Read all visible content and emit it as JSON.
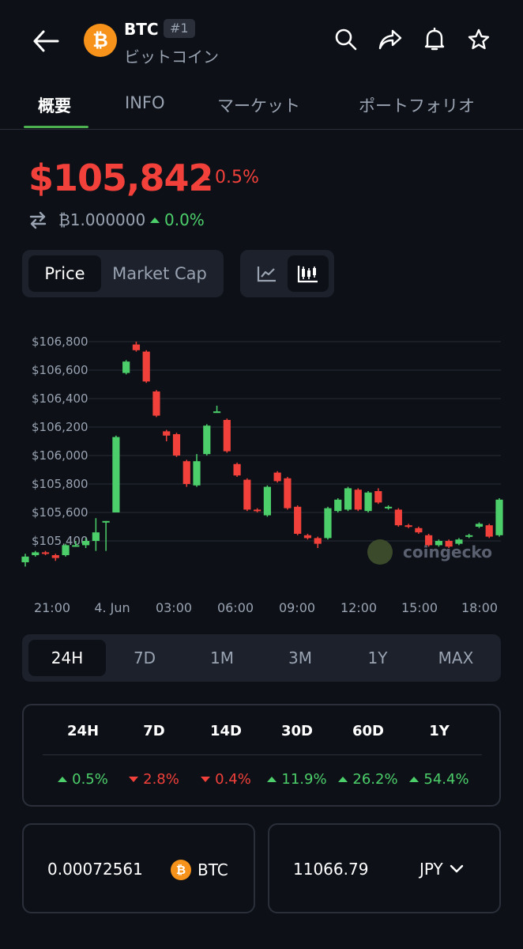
{
  "header": {
    "symbol": "BTC",
    "rank": "#1",
    "name": "ビットコイン",
    "logo_glyph": "₿",
    "icons": [
      "back-icon",
      "search-icon",
      "share-icon",
      "bell-icon",
      "star-icon"
    ]
  },
  "tabs": [
    {
      "label": "概要",
      "active": true
    },
    {
      "label": "INFO",
      "active": false
    },
    {
      "label": "マーケット",
      "active": false
    },
    {
      "label": "ポートフォリオ",
      "active": false
    }
  ],
  "price": {
    "value": "$105,842",
    "change": "0.5%",
    "btc_value": "₿1.000000",
    "btc_change": "0.0%"
  },
  "chart_toggle": {
    "price_label": "Price",
    "market_cap_label": "Market Cap",
    "selected": "Price",
    "chart_type_icons": [
      "line-chart-icon",
      "candlestick-icon"
    ],
    "selected_type": "candlestick"
  },
  "chart_data": {
    "type": "candlestick",
    "y_tick_labels": [
      "$106,800",
      "$106,600",
      "$106,400",
      "$106,200",
      "$106,000",
      "$105,800",
      "$105,600",
      "$105,400"
    ],
    "y_ticks": [
      106800,
      106600,
      106400,
      106200,
      106000,
      105800,
      105600,
      105400
    ],
    "x_tick_labels": [
      "21:00",
      "4. Jun",
      "03:00",
      "06:00",
      "09:00",
      "12:00",
      "15:00",
      "18:00"
    ],
    "ylim": [
      105200,
      106900
    ],
    "grid": true,
    "watermark": "coingecko",
    "candles": [
      {
        "o": 105250,
        "c": 105290,
        "h": 105310,
        "l": 105220
      },
      {
        "o": 105300,
        "c": 105320,
        "h": 105330,
        "l": 105290
      },
      {
        "o": 105320,
        "c": 105310,
        "h": 105330,
        "l": 105300
      },
      {
        "o": 105300,
        "c": 105280,
        "h": 105310,
        "l": 105260
      },
      {
        "o": 105300,
        "c": 105370,
        "h": 105380,
        "l": 105290
      },
      {
        "o": 105370,
        "c": 105370,
        "h": 105400,
        "l": 105360
      },
      {
        "o": 105370,
        "c": 105400,
        "h": 105420,
        "l": 105350
      },
      {
        "o": 105400,
        "c": 105460,
        "h": 105560,
        "l": 105330
      },
      {
        "o": 105540,
        "c": 105540,
        "h": 105540,
        "l": 105330
      },
      {
        "o": 105600,
        "c": 106130,
        "h": 106140,
        "l": 105600
      },
      {
        "o": 106580,
        "c": 106660,
        "h": 106670,
        "l": 106570
      },
      {
        "o": 106780,
        "c": 106740,
        "h": 106800,
        "l": 106730
      },
      {
        "o": 106730,
        "c": 106520,
        "h": 106740,
        "l": 106510
      },
      {
        "o": 106450,
        "c": 106280,
        "h": 106460,
        "l": 106270
      },
      {
        "o": 106170,
        "c": 106140,
        "h": 106180,
        "l": 106100
      },
      {
        "o": 106150,
        "c": 106000,
        "h": 106160,
        "l": 105990
      },
      {
        "o": 105960,
        "c": 105800,
        "h": 105970,
        "l": 105780
      },
      {
        "o": 105790,
        "c": 105960,
        "h": 106010,
        "l": 105780
      },
      {
        "o": 106010,
        "c": 106210,
        "h": 106220,
        "l": 106000
      },
      {
        "o": 106310,
        "c": 106310,
        "h": 106350,
        "l": 106300
      },
      {
        "o": 106250,
        "c": 106030,
        "h": 106260,
        "l": 106020
      },
      {
        "o": 105940,
        "c": 105860,
        "h": 105950,
        "l": 105850
      },
      {
        "o": 105830,
        "c": 105620,
        "h": 105840,
        "l": 105610
      },
      {
        "o": 105620,
        "c": 105610,
        "h": 105630,
        "l": 105600
      },
      {
        "o": 105580,
        "c": 105780,
        "h": 105790,
        "l": 105570
      },
      {
        "o": 105880,
        "c": 105820,
        "h": 105890,
        "l": 105810
      },
      {
        "o": 105840,
        "c": 105630,
        "h": 105850,
        "l": 105620
      },
      {
        "o": 105640,
        "c": 105450,
        "h": 105650,
        "l": 105440
      },
      {
        "o": 105440,
        "c": 105420,
        "h": 105450,
        "l": 105410
      },
      {
        "o": 105420,
        "c": 105380,
        "h": 105430,
        "l": 105350
      },
      {
        "o": 105420,
        "c": 105630,
        "h": 105640,
        "l": 105410
      },
      {
        "o": 105610,
        "c": 105690,
        "h": 105700,
        "l": 105600
      },
      {
        "o": 105620,
        "c": 105770,
        "h": 105780,
        "l": 105610
      },
      {
        "o": 105760,
        "c": 105620,
        "h": 105770,
        "l": 105610
      },
      {
        "o": 105610,
        "c": 105740,
        "h": 105750,
        "l": 105600
      },
      {
        "o": 105750,
        "c": 105670,
        "h": 105770,
        "l": 105660
      },
      {
        "o": 105640,
        "c": 105640,
        "h": 105650,
        "l": 105620
      },
      {
        "o": 105620,
        "c": 105510,
        "h": 105630,
        "l": 105500
      },
      {
        "o": 105510,
        "c": 105500,
        "h": 105520,
        "l": 105490
      },
      {
        "o": 105490,
        "c": 105460,
        "h": 105500,
        "l": 105450
      },
      {
        "o": 105440,
        "c": 105370,
        "h": 105450,
        "l": 105360
      },
      {
        "o": 105370,
        "c": 105400,
        "h": 105410,
        "l": 105360
      },
      {
        "o": 105400,
        "c": 105360,
        "h": 105410,
        "l": 105350
      },
      {
        "o": 105380,
        "c": 105410,
        "h": 105420,
        "l": 105370
      },
      {
        "o": 105430,
        "c": 105440,
        "h": 105450,
        "l": 105420
      },
      {
        "o": 105500,
        "c": 105520,
        "h": 105530,
        "l": 105490
      },
      {
        "o": 105510,
        "c": 105430,
        "h": 105520,
        "l": 105420
      },
      {
        "o": 105440,
        "c": 105690,
        "h": 105700,
        "l": 105430
      }
    ]
  },
  "ranges": [
    {
      "label": "24H",
      "active": true
    },
    {
      "label": "7D",
      "active": false
    },
    {
      "label": "1M",
      "active": false
    },
    {
      "label": "3M",
      "active": false
    },
    {
      "label": "1Y",
      "active": false
    },
    {
      "label": "MAX",
      "active": false
    }
  ],
  "performance": [
    {
      "period": "24H",
      "change": "0.5%",
      "dir": "up"
    },
    {
      "period": "7D",
      "change": "2.8%",
      "dir": "down"
    },
    {
      "period": "14D",
      "change": "0.4%",
      "dir": "down"
    },
    {
      "period": "30D",
      "change": "11.9%",
      "dir": "up"
    },
    {
      "period": "60D",
      "change": "26.2%",
      "dir": "up"
    },
    {
      "period": "1Y",
      "change": "54.4%",
      "dir": "up"
    }
  ],
  "converter": {
    "crypto_amount": "0.00072561",
    "crypto_unit": "BTC",
    "fiat_amount": "11066.79",
    "fiat_unit": "JPY"
  },
  "colors": {
    "up": "#4ccf6a",
    "down": "#f2403a",
    "accent": "#4caf50",
    "btc": "#f7931a"
  }
}
